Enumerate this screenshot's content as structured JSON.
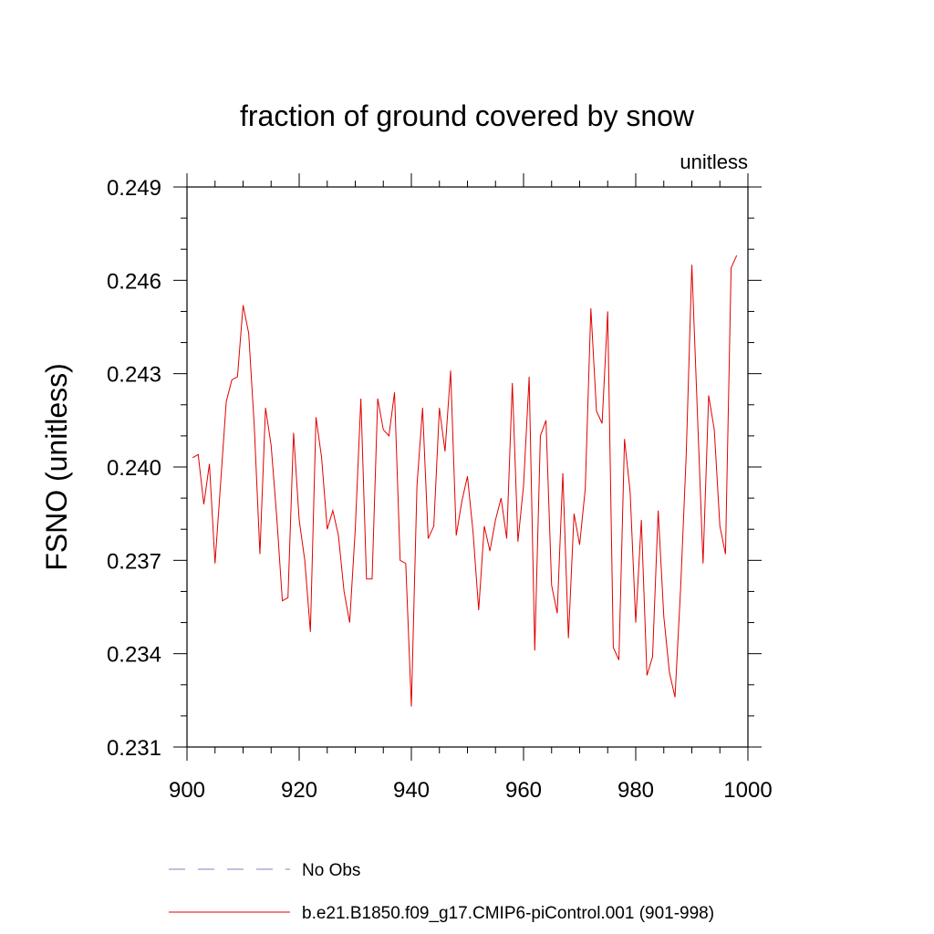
{
  "chart_data": {
    "type": "line",
    "title": "fraction of ground covered by snow",
    "units_label": "unitless",
    "xlabel": "",
    "ylabel": "FSNO  (unitless)",
    "xlim": [
      900,
      1000
    ],
    "ylim": [
      0.231,
      0.249
    ],
    "x_ticks": [
      900,
      920,
      940,
      960,
      980,
      1000
    ],
    "x_tick_labels": [
      "900",
      "920",
      "940",
      "960",
      "980",
      "1000"
    ],
    "y_ticks": [
      0.231,
      0.234,
      0.237,
      0.24,
      0.243,
      0.246,
      0.249
    ],
    "y_tick_labels": [
      "0.231",
      "0.234",
      "0.237",
      "0.240",
      "0.243",
      "0.246",
      "0.249"
    ],
    "series": [
      {
        "name": "No Obs",
        "color": "#8080c0",
        "dash": "dashed",
        "x": [],
        "values": []
      },
      {
        "name": "b.e21.B1850.f09_g17.CMIP6-piControl.001 (901-998)",
        "color": "#e00000",
        "dash": "solid",
        "x": [
          901,
          902,
          903,
          904,
          905,
          906,
          907,
          908,
          909,
          910,
          911,
          912,
          913,
          914,
          915,
          916,
          917,
          918,
          919,
          920,
          921,
          922,
          923,
          924,
          925,
          926,
          927,
          928,
          929,
          930,
          931,
          932,
          933,
          934,
          935,
          936,
          937,
          938,
          939,
          940,
          941,
          942,
          943,
          944,
          945,
          946,
          947,
          948,
          949,
          950,
          951,
          952,
          953,
          954,
          955,
          956,
          957,
          958,
          959,
          960,
          961,
          962,
          963,
          964,
          965,
          966,
          967,
          968,
          969,
          970,
          971,
          972,
          973,
          974,
          975,
          976,
          977,
          978,
          979,
          980,
          981,
          982,
          983,
          984,
          985,
          986,
          987,
          988,
          989,
          990,
          991,
          992,
          993,
          994,
          995,
          996,
          997,
          998
        ],
        "values": [
          0.2403,
          0.2404,
          0.2388,
          0.2401,
          0.2369,
          0.2395,
          0.2421,
          0.2428,
          0.2429,
          0.2452,
          0.2443,
          0.2413,
          0.2372,
          0.2419,
          0.2407,
          0.2384,
          0.2357,
          0.2358,
          0.2411,
          0.2383,
          0.237,
          0.2347,
          0.2416,
          0.2403,
          0.238,
          0.2386,
          0.2378,
          0.236,
          0.235,
          0.238,
          0.2422,
          0.2364,
          0.2364,
          0.2422,
          0.2412,
          0.241,
          0.2424,
          0.237,
          0.2369,
          0.2323,
          0.2394,
          0.2419,
          0.2377,
          0.2381,
          0.2419,
          0.2405,
          0.2431,
          0.2378,
          0.2389,
          0.2397,
          0.2379,
          0.2354,
          0.2381,
          0.2373,
          0.2383,
          0.239,
          0.2377,
          0.2427,
          0.2376,
          0.2394,
          0.2429,
          0.2341,
          0.241,
          0.2415,
          0.2362,
          0.2353,
          0.2398,
          0.2345,
          0.2385,
          0.2375,
          0.2393,
          0.2451,
          0.2418,
          0.2414,
          0.245,
          0.2342,
          0.2338,
          0.2409,
          0.2392,
          0.235,
          0.2383,
          0.2333,
          0.2339,
          0.2386,
          0.2352,
          0.2334,
          0.2326,
          0.2361,
          0.2404,
          0.2465,
          0.2417,
          0.2369,
          0.2423,
          0.2412,
          0.2381,
          0.2372,
          0.2464,
          0.2468
        ]
      }
    ]
  }
}
